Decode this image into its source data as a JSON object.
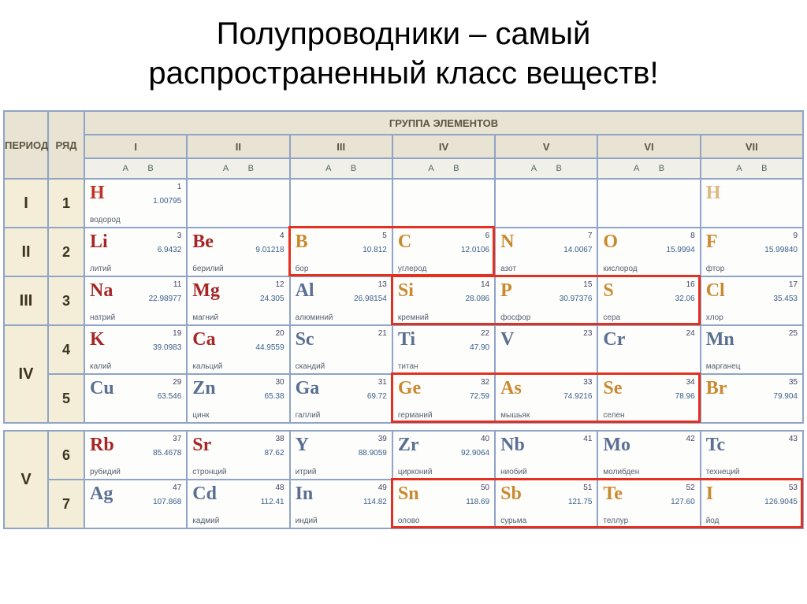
{
  "title_line1": "Полупроводники – самый",
  "title_line2": "распространенный класс веществ!",
  "headers": {
    "period": "ПЕРИОД",
    "row": "РЯД",
    "groups_title": "ГРУППА ЭЛЕМЕНТОВ",
    "roman": [
      "I",
      "II",
      "III",
      "IV",
      "V",
      "VI",
      "VII"
    ],
    "a": "A",
    "b": "B"
  },
  "colors": {
    "red": "#c03426",
    "darkred": "#a52626",
    "blue": "#2d4c8a",
    "orange": "#c98a2e",
    "steel": "#5a6f92",
    "teal": "#3a7a7a",
    "gray": "#6a6a6a",
    "highlight_border": "#e43020"
  },
  "periods": [
    "I",
    "II",
    "III",
    "IV",
    "IV",
    "V",
    "V"
  ],
  "row_nums": [
    "1",
    "2",
    "3",
    "4",
    "5",
    "6",
    "7"
  ],
  "elements": {
    "r1": [
      {
        "sym": "H",
        "name": "водород",
        "num": "1",
        "mass": "1.00795",
        "col": "red"
      },
      null,
      null,
      null,
      null,
      null,
      {
        "sym": "H",
        "name": "",
        "num": "",
        "mass": "",
        "col": "orange",
        "faint": true
      }
    ],
    "r2": [
      {
        "sym": "Li",
        "name": "литий",
        "num": "3",
        "mass": "6.9432",
        "col": "darkred"
      },
      {
        "sym": "Be",
        "name": "берилий",
        "num": "4",
        "mass": "9.01218",
        "col": "darkred"
      },
      {
        "sym": "B",
        "name": "бор",
        "num": "5",
        "mass": "10.812",
        "col": "orange"
      },
      {
        "sym": "C",
        "name": "углерод",
        "num": "6",
        "mass": "12.0106",
        "col": "orange"
      },
      {
        "sym": "N",
        "name": "азот",
        "num": "7",
        "mass": "14.0067",
        "col": "orange"
      },
      {
        "sym": "O",
        "name": "кислород",
        "num": "8",
        "mass": "15.9994",
        "col": "orange"
      },
      {
        "sym": "F",
        "name": "фтор",
        "num": "9",
        "mass": "15.99840",
        "col": "orange"
      }
    ],
    "r3": [
      {
        "sym": "Na",
        "name": "натрий",
        "num": "11",
        "mass": "22.98977",
        "col": "darkred"
      },
      {
        "sym": "Mg",
        "name": "магний",
        "num": "12",
        "mass": "24.305",
        "col": "darkred"
      },
      {
        "sym": "Al",
        "name": "алюминий",
        "num": "13",
        "mass": "26.98154",
        "col": "steel"
      },
      {
        "sym": "Si",
        "name": "кремний",
        "num": "14",
        "mass": "28.086",
        "col": "orange"
      },
      {
        "sym": "P",
        "name": "фосфор",
        "num": "15",
        "mass": "30.97376",
        "col": "orange"
      },
      {
        "sym": "S",
        "name": "сера",
        "num": "16",
        "mass": "32.06",
        "col": "orange"
      },
      {
        "sym": "Cl",
        "name": "хлор",
        "num": "17",
        "mass": "35.453",
        "col": "orange"
      }
    ],
    "r4": [
      {
        "sym": "K",
        "name": "калий",
        "num": "19",
        "mass": "39.0983",
        "col": "darkred"
      },
      {
        "sym": "Ca",
        "name": "кальций",
        "num": "20",
        "mass": "44.9559",
        "col": "darkred"
      },
      {
        "sym": "Sc",
        "name": "скандий",
        "num": "21",
        "mass": "",
        "col": "steel"
      },
      {
        "sym": "Ti",
        "name": "титан",
        "num": "22",
        "mass": "47.90",
        "col": "steel"
      },
      {
        "sym": "V",
        "name": "",
        "num": "23",
        "mass": "",
        "col": "steel"
      },
      {
        "sym": "Cr",
        "name": "",
        "num": "24",
        "mass": "",
        "col": "steel"
      },
      {
        "sym": "Mn",
        "name": "марганец",
        "num": "25",
        "mass": "",
        "col": "steel"
      }
    ],
    "r5": [
      {
        "sym": "Cu",
        "name": "",
        "num": "29",
        "mass": "63.546",
        "col": "steel"
      },
      {
        "sym": "Zn",
        "name": "цинк",
        "num": "30",
        "mass": "65.38",
        "col": "steel"
      },
      {
        "sym": "Ga",
        "name": "галлий",
        "num": "31",
        "mass": "69.72",
        "col": "steel"
      },
      {
        "sym": "Ge",
        "name": "германий",
        "num": "32",
        "mass": "72.59",
        "col": "orange"
      },
      {
        "sym": "As",
        "name": "мышьяк",
        "num": "33",
        "mass": "74.9216",
        "col": "orange"
      },
      {
        "sym": "Se",
        "name": "селен",
        "num": "34",
        "mass": "78.96",
        "col": "orange"
      },
      {
        "sym": "Br",
        "name": "",
        "num": "35",
        "mass": "79.904",
        "col": "orange"
      }
    ],
    "r6": [
      {
        "sym": "Rb",
        "name": "рубидий",
        "num": "37",
        "mass": "85.4678",
        "col": "darkred"
      },
      {
        "sym": "Sr",
        "name": "стронций",
        "num": "38",
        "mass": "87.62",
        "col": "darkred"
      },
      {
        "sym": "Y",
        "name": "итрий",
        "num": "39",
        "mass": "88.9059",
        "col": "steel"
      },
      {
        "sym": "Zr",
        "name": "цирконий",
        "num": "40",
        "mass": "92.9064",
        "col": "steel"
      },
      {
        "sym": "Nb",
        "name": "ниобий",
        "num": "41",
        "mass": "",
        "col": "steel"
      },
      {
        "sym": "Mo",
        "name": "молибден",
        "num": "42",
        "mass": "",
        "col": "steel"
      },
      {
        "sym": "Tc",
        "name": "технеций",
        "num": "43",
        "mass": "",
        "col": "steel"
      }
    ],
    "r7": [
      {
        "sym": "Ag",
        "name": "",
        "num": "47",
        "mass": "107.868",
        "col": "steel"
      },
      {
        "sym": "Cd",
        "name": "кадмий",
        "num": "48",
        "mass": "112.41",
        "col": "steel"
      },
      {
        "sym": "In",
        "name": "индий",
        "num": "49",
        "mass": "114.82",
        "col": "steel"
      },
      {
        "sym": "Sn",
        "name": "олово",
        "num": "50",
        "mass": "118.69",
        "col": "orange"
      },
      {
        "sym": "Sb",
        "name": "сурьма",
        "num": "51",
        "mass": "121.75",
        "col": "orange"
      },
      {
        "sym": "Te",
        "name": "теллур",
        "num": "52",
        "mass": "127.60",
        "col": "orange"
      },
      {
        "sym": "I",
        "name": "йод",
        "num": "53",
        "mass": "126.9045",
        "col": "orange"
      }
    ]
  },
  "highlights": [
    {
      "row": 2,
      "from": 2,
      "to": 3
    },
    {
      "row": 3,
      "from": 3,
      "to": 5
    },
    {
      "row": 5,
      "from": 3,
      "to": 5
    },
    {
      "row": 7,
      "from": 3,
      "to": 6
    }
  ]
}
